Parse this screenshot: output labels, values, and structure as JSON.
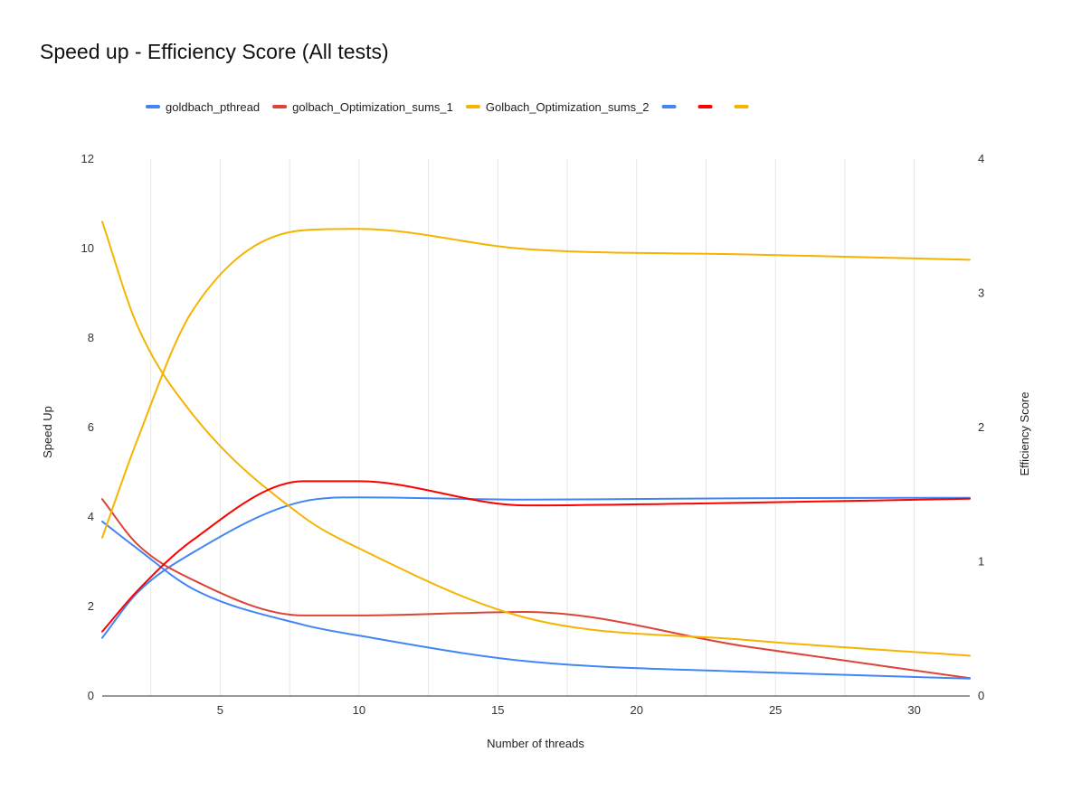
{
  "chart_data": {
    "type": "line",
    "title": "Speed up - Efficiency Score (All tests)",
    "xlabel": "Number of threads",
    "ylabel_left": "Speed Up",
    "ylabel_right": "Efficiency Score",
    "xlim": [
      0.75,
      32
    ],
    "ylim_left": [
      0,
      12
    ],
    "ylim_right": [
      0,
      4
    ],
    "x_ticks": [
      5,
      10,
      15,
      20,
      25,
      30
    ],
    "y_ticks_left": [
      0,
      2,
      4,
      6,
      8,
      10,
      12
    ],
    "y_ticks_right": [
      0,
      1,
      2,
      3,
      4
    ],
    "grid": "vertical",
    "legend_position": "top",
    "series": [
      {
        "name": "goldbach_pthread",
        "axis": "left",
        "color": "#4285f4",
        "points": [
          [
            0.75,
            1.3
          ],
          [
            2,
            2.3
          ],
          [
            4,
            3.2
          ],
          [
            8,
            4.35
          ],
          [
            10,
            4.44
          ],
          [
            16,
            4.39
          ],
          [
            24,
            4.42
          ],
          [
            32,
            4.43
          ]
        ]
      },
      {
        "name": "golbach_Optimization_sums_1",
        "axis": "left",
        "color": "#db4437",
        "points": [
          [
            0.75,
            4.4
          ],
          [
            2,
            3.4
          ],
          [
            4,
            2.6
          ],
          [
            8,
            1.8
          ],
          [
            10,
            1.8
          ],
          [
            16,
            1.88
          ],
          [
            24,
            1.1
          ],
          [
            32,
            0.4
          ]
        ]
      },
      {
        "name": "Golbach_Optimization_sums_2",
        "axis": "left",
        "color": "#f4b400",
        "points": [
          [
            0.75,
            10.6
          ],
          [
            2,
            8.3
          ],
          [
            4,
            6.3
          ],
          [
            8,
            4.0
          ],
          [
            10,
            3.3
          ],
          [
            16,
            1.75
          ],
          [
            24,
            1.25
          ],
          [
            32,
            0.9
          ]
        ]
      },
      {
        "name": "",
        "axis": "right",
        "color": "#4285f4",
        "points": [
          [
            0.75,
            1.3
          ],
          [
            2,
            1.1
          ],
          [
            4,
            0.8
          ],
          [
            8,
            0.53
          ],
          [
            10,
            0.45
          ],
          [
            16,
            0.26
          ],
          [
            24,
            0.18
          ],
          [
            32,
            0.13
          ]
        ]
      },
      {
        "name": "",
        "axis": "right",
        "color": "#ff0000",
        "points": [
          [
            0.75,
            0.48
          ],
          [
            2,
            0.78
          ],
          [
            4,
            1.16
          ],
          [
            8,
            1.6
          ],
          [
            10,
            1.6
          ],
          [
            16,
            1.42
          ],
          [
            24,
            1.44
          ],
          [
            32,
            1.47
          ]
        ]
      },
      {
        "name": "",
        "axis": "right",
        "color": "#f4b400",
        "points": [
          [
            0.75,
            1.18
          ],
          [
            2,
            1.9
          ],
          [
            4,
            2.87
          ],
          [
            8,
            3.47
          ],
          [
            10,
            3.48
          ],
          [
            16,
            3.33
          ],
          [
            24,
            3.29
          ],
          [
            32,
            3.25
          ]
        ]
      }
    ]
  }
}
